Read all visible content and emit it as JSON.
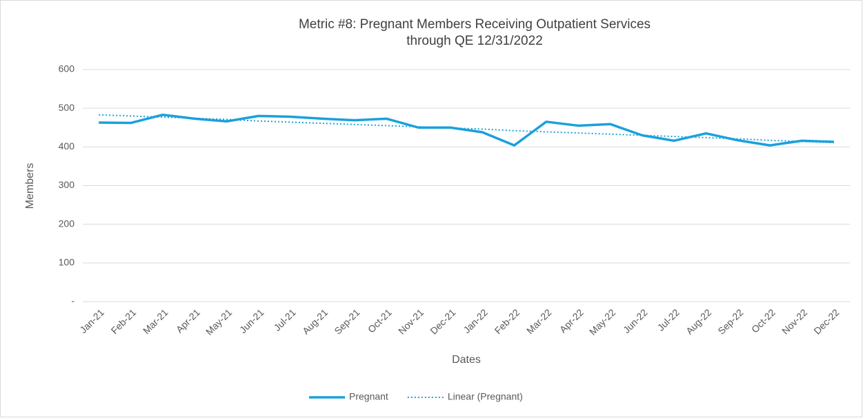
{
  "chart_data": {
    "type": "line",
    "title": "Metric #8: Pregnant Members Receiving Outpatient Services",
    "subtitle": "through QE 12/31/2022",
    "y_label": "Members",
    "x_label": "Dates",
    "categories": [
      "Jan-21",
      "Feb-21",
      "Mar-21",
      "Apr-21",
      "May-21",
      "Jun-21",
      "Jul-21",
      "Aug-21",
      "Sep-21",
      "Oct-21",
      "Nov-21",
      "Dec-21",
      "Jan-22",
      "Feb-22",
      "Mar-22",
      "Apr-22",
      "May-22",
      "Jun-22",
      "Jul-22",
      "Aug-22",
      "Sep-22",
      "Oct-22",
      "Nov-22",
      "Dec-22"
    ],
    "series": [
      {
        "name": "Pregnant",
        "color": "#1aa0dc",
        "line_style": "solid",
        "values": [
          463,
          462,
          483,
          473,
          466,
          480,
          478,
          473,
          469,
          473,
          450,
          450,
          438,
          404,
          465,
          455,
          459,
          430,
          416,
          435,
          417,
          404,
          416,
          413
        ]
      },
      {
        "name": "Linear (Pregnant)",
        "color": "#1aa0dc",
        "line_style": "dotted",
        "values": [
          483,
          480,
          477,
          474,
          471,
          467,
          464,
          461,
          458,
          455,
          452,
          449,
          446,
          442,
          439,
          436,
          433,
          430,
          427,
          424,
          421,
          417,
          414,
          411
        ]
      }
    ],
    "ylim": [
      0,
      600
    ],
    "yticks": [
      {
        "value": 0,
        "label": "-"
      },
      100,
      200,
      300,
      400,
      500,
      600
    ],
    "grid": true,
    "legend": "bottom"
  }
}
